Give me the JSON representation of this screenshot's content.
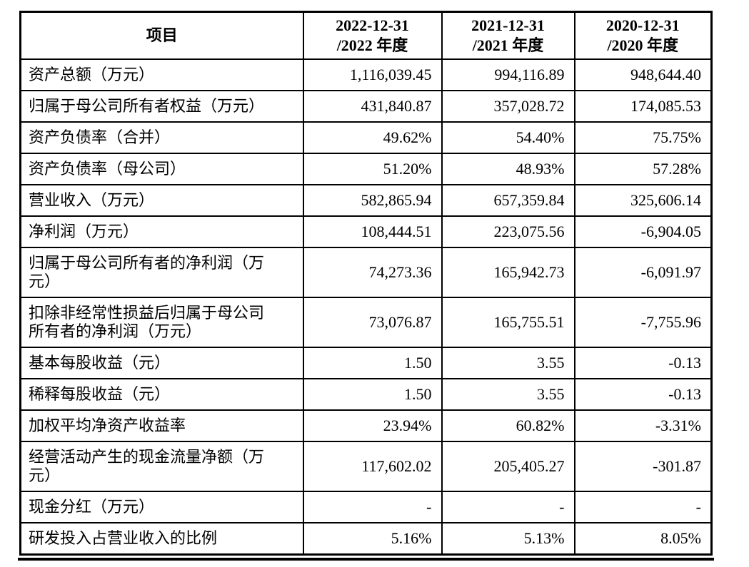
{
  "table": {
    "header": {
      "item_label": "项目",
      "periods": [
        {
          "line1": "2022-12-31",
          "line2": "/2022 年度"
        },
        {
          "line1": "2021-12-31",
          "line2": "/2021 年度"
        },
        {
          "line1": "2020-12-31",
          "line2": "/2020 年度"
        }
      ]
    },
    "rows": [
      {
        "label": "资产总额（万元）",
        "values": [
          "1,116,039.45",
          "994,116.89",
          "948,644.40"
        ]
      },
      {
        "label": "归属于母公司所有者权益（万元）",
        "values": [
          "431,840.87",
          "357,028.72",
          "174,085.53"
        ]
      },
      {
        "label": "资产负债率（合并）",
        "values": [
          "49.62%",
          "54.40%",
          "75.75%"
        ]
      },
      {
        "label": "资产负债率（母公司）",
        "values": [
          "51.20%",
          "48.93%",
          "57.28%"
        ]
      },
      {
        "label": "营业收入（万元）",
        "values": [
          "582,865.94",
          "657,359.84",
          "325,606.14"
        ]
      },
      {
        "label": "净利润（万元）",
        "values": [
          "108,444.51",
          "223,075.56",
          "-6,904.05"
        ]
      },
      {
        "label": "归属于母公司所有者的净利润（万元）",
        "values": [
          "74,273.36",
          "165,942.73",
          "-6,091.97"
        ]
      },
      {
        "label": "扣除非经常性损益后归属于母公司所有者的净利润（万元）",
        "values": [
          "73,076.87",
          "165,755.51",
          "-7,755.96"
        ]
      },
      {
        "label": "基本每股收益（元）",
        "values": [
          "1.50",
          "3.55",
          "-0.13"
        ]
      },
      {
        "label": "稀释每股收益（元）",
        "values": [
          "1.50",
          "3.55",
          "-0.13"
        ]
      },
      {
        "label": "加权平均净资产收益率",
        "values": [
          "23.94%",
          "60.82%",
          "-3.31%"
        ]
      },
      {
        "label": "经营活动产生的现金流量净额（万元）",
        "values": [
          "117,602.02",
          "205,405.27",
          "-301.87"
        ]
      },
      {
        "label": "现金分红（万元）",
        "values": [
          "-",
          "-",
          "-"
        ]
      },
      {
        "label": "研发投入占营业收入的比例",
        "values": [
          "5.16%",
          "5.13%",
          "8.05%"
        ]
      }
    ],
    "colors": {
      "text": "#000000",
      "border": "#000000",
      "background": "#ffffff"
    }
  }
}
